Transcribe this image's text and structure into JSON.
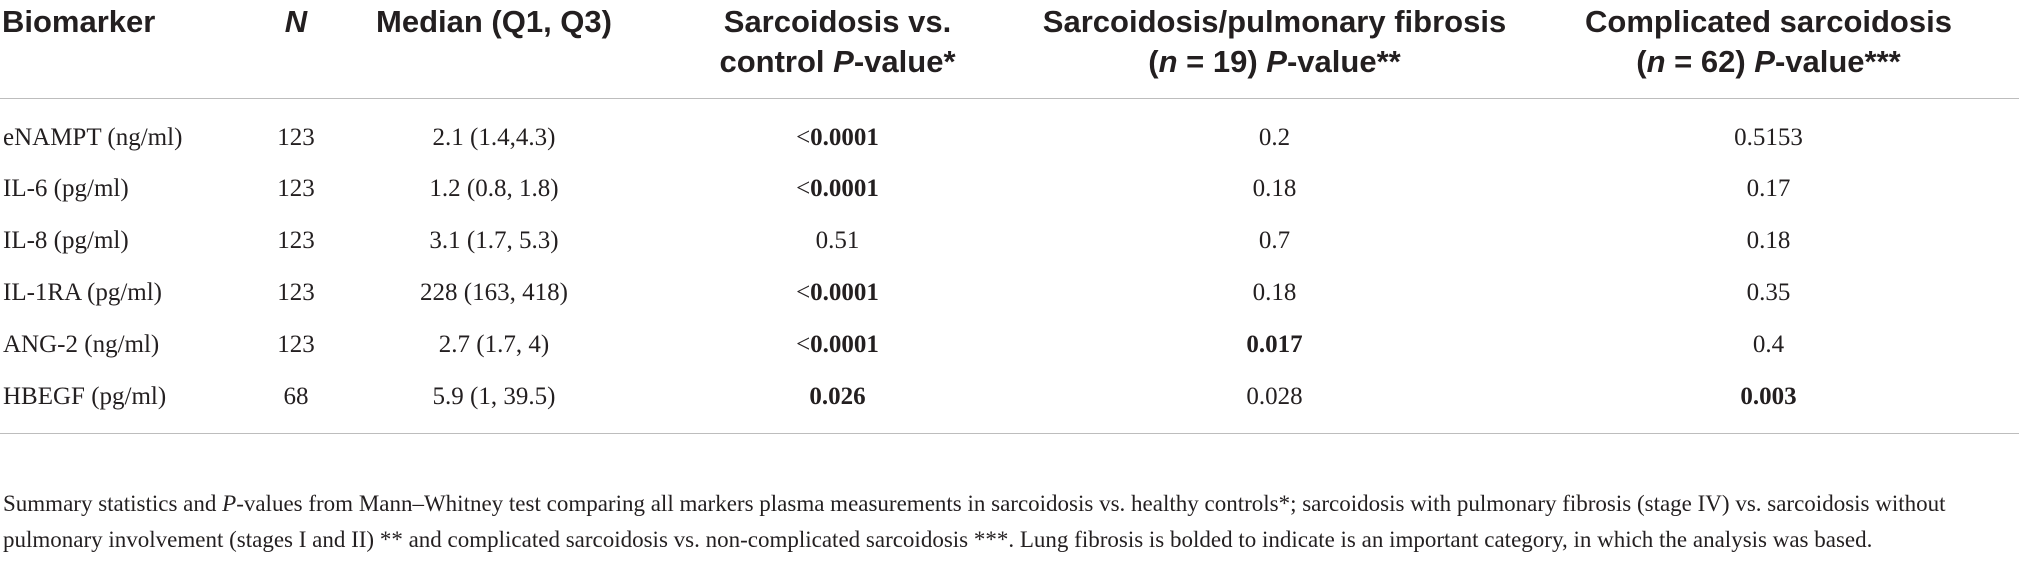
{
  "table": {
    "headers": {
      "biomarker": "Biomarker",
      "n": "N",
      "median": "Median (Q1, Q3)",
      "col3_line1": "Sarcoidosis vs.",
      "col3_line2_pre": "control ",
      "col3_line2_p": "P",
      "col3_line2_post": "-value*",
      "col4_line1": "Sarcoidosis/pulmonary fibrosis",
      "col4_line2_open": "(",
      "col4_line2_n": "n",
      "col4_line2_mid": " = 19) ",
      "col4_line2_p": "P",
      "col4_line2_post": "-value**",
      "col5_line1": "Complicated sarcoidosis",
      "col5_line2_open": "(",
      "col5_line2_n": "n",
      "col5_line2_mid": " = 62) ",
      "col5_line2_p": "P",
      "col5_line2_post": "-value***"
    },
    "rows": [
      {
        "biomarker": "eNAMPT (ng/ml)",
        "n": "123",
        "median": "2.1 (1.4,4.3)",
        "p_control_prefix": "<",
        "p_control": "0.0001",
        "p_fibrosis": "0.2",
        "p_complicated": "0.5153"
      },
      {
        "biomarker": "IL-6 (pg/ml)",
        "n": "123",
        "median": "1.2 (0.8, 1.8)",
        "p_control_prefix": "<",
        "p_control": "0.0001",
        "p_fibrosis": "0.18",
        "p_complicated": "0.17"
      },
      {
        "biomarker": "IL-8 (pg/ml)",
        "n": "123",
        "median": "3.1 (1.7, 5.3)",
        "p_control_prefix": "",
        "p_control": "0.51",
        "p_fibrosis": "0.7",
        "p_complicated": "0.18"
      },
      {
        "biomarker": "IL-1RA (pg/ml)",
        "n": "123",
        "median": "228 (163, 418)",
        "p_control_prefix": "<",
        "p_control": "0.0001",
        "p_fibrosis": "0.18",
        "p_complicated": "0.35"
      },
      {
        "biomarker": "ANG-2 (ng/ml)",
        "n": "123",
        "median": "2.7 (1.7, 4)",
        "p_control_prefix": "<",
        "p_control": "0.0001",
        "p_fibrosis": "0.017",
        "p_complicated": "0.4"
      },
      {
        "biomarker": "HBEGF (pg/ml)",
        "n": "68",
        "median": "5.9 (1, 39.5)",
        "p_control_prefix": "",
        "p_control": "0.026",
        "p_fibrosis": "0.028",
        "p_complicated": "0.003"
      }
    ]
  },
  "footnote": {
    "part1": "Summary statistics and ",
    "p": "P",
    "part2": "-values from Mann–Whitney test comparing all markers plasma measurements in sarcoidosis vs. healthy controls*; sarcoidosis with pulmonary fibrosis (stage IV) vs. sarcoidosis without pulmonary involvement (stages I and II) ** and complicated sarcoidosis vs. non-complicated sarcoidosis ***. Lung fibrosis is bolded to indicate is an important category, in which the analysis was based."
  }
}
